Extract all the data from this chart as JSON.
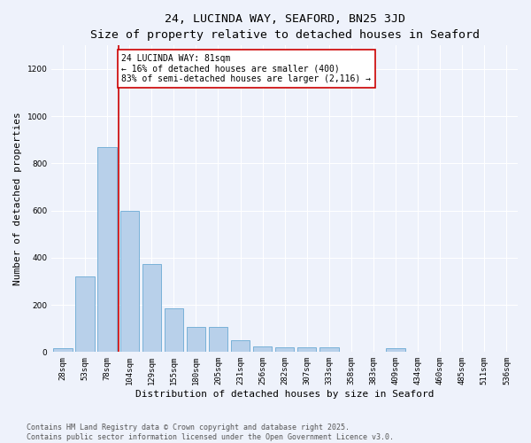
{
  "title": "24, LUCINDA WAY, SEAFORD, BN25 3JD",
  "subtitle": "Size of property relative to detached houses in Seaford",
  "xlabel": "Distribution of detached houses by size in Seaford",
  "ylabel": "Number of detached properties",
  "categories": [
    "28sqm",
    "53sqm",
    "78sqm",
    "104sqm",
    "129sqm",
    "155sqm",
    "180sqm",
    "205sqm",
    "231sqm",
    "256sqm",
    "282sqm",
    "307sqm",
    "333sqm",
    "358sqm",
    "383sqm",
    "409sqm",
    "434sqm",
    "460sqm",
    "485sqm",
    "511sqm",
    "536sqm"
  ],
  "values": [
    15,
    320,
    870,
    600,
    375,
    185,
    105,
    105,
    50,
    25,
    20,
    20,
    20,
    0,
    0,
    15,
    0,
    0,
    0,
    0,
    0
  ],
  "bar_color": "#b8d0ea",
  "bar_edgecolor": "#6aaad4",
  "background_color": "#eef2fb",
  "grid_color": "#ffffff",
  "vline_x": 2.5,
  "vline_color": "#cc0000",
  "annotation_text": "24 LUCINDA WAY: 81sqm\n← 16% of detached houses are smaller (400)\n83% of semi-detached houses are larger (2,116) →",
  "annotation_box_color": "#cc0000",
  "annotation_facecolor": "#ffffff",
  "ylim": [
    0,
    1300
  ],
  "yticks": [
    0,
    200,
    400,
    600,
    800,
    1000,
    1200
  ],
  "footer_line1": "Contains HM Land Registry data © Crown copyright and database right 2025.",
  "footer_line2": "Contains public sector information licensed under the Open Government Licence v3.0.",
  "title_fontsize": 9.5,
  "subtitle_fontsize": 8.5,
  "axis_label_fontsize": 8,
  "tick_fontsize": 6.5,
  "annotation_fontsize": 7,
  "footer_fontsize": 6
}
